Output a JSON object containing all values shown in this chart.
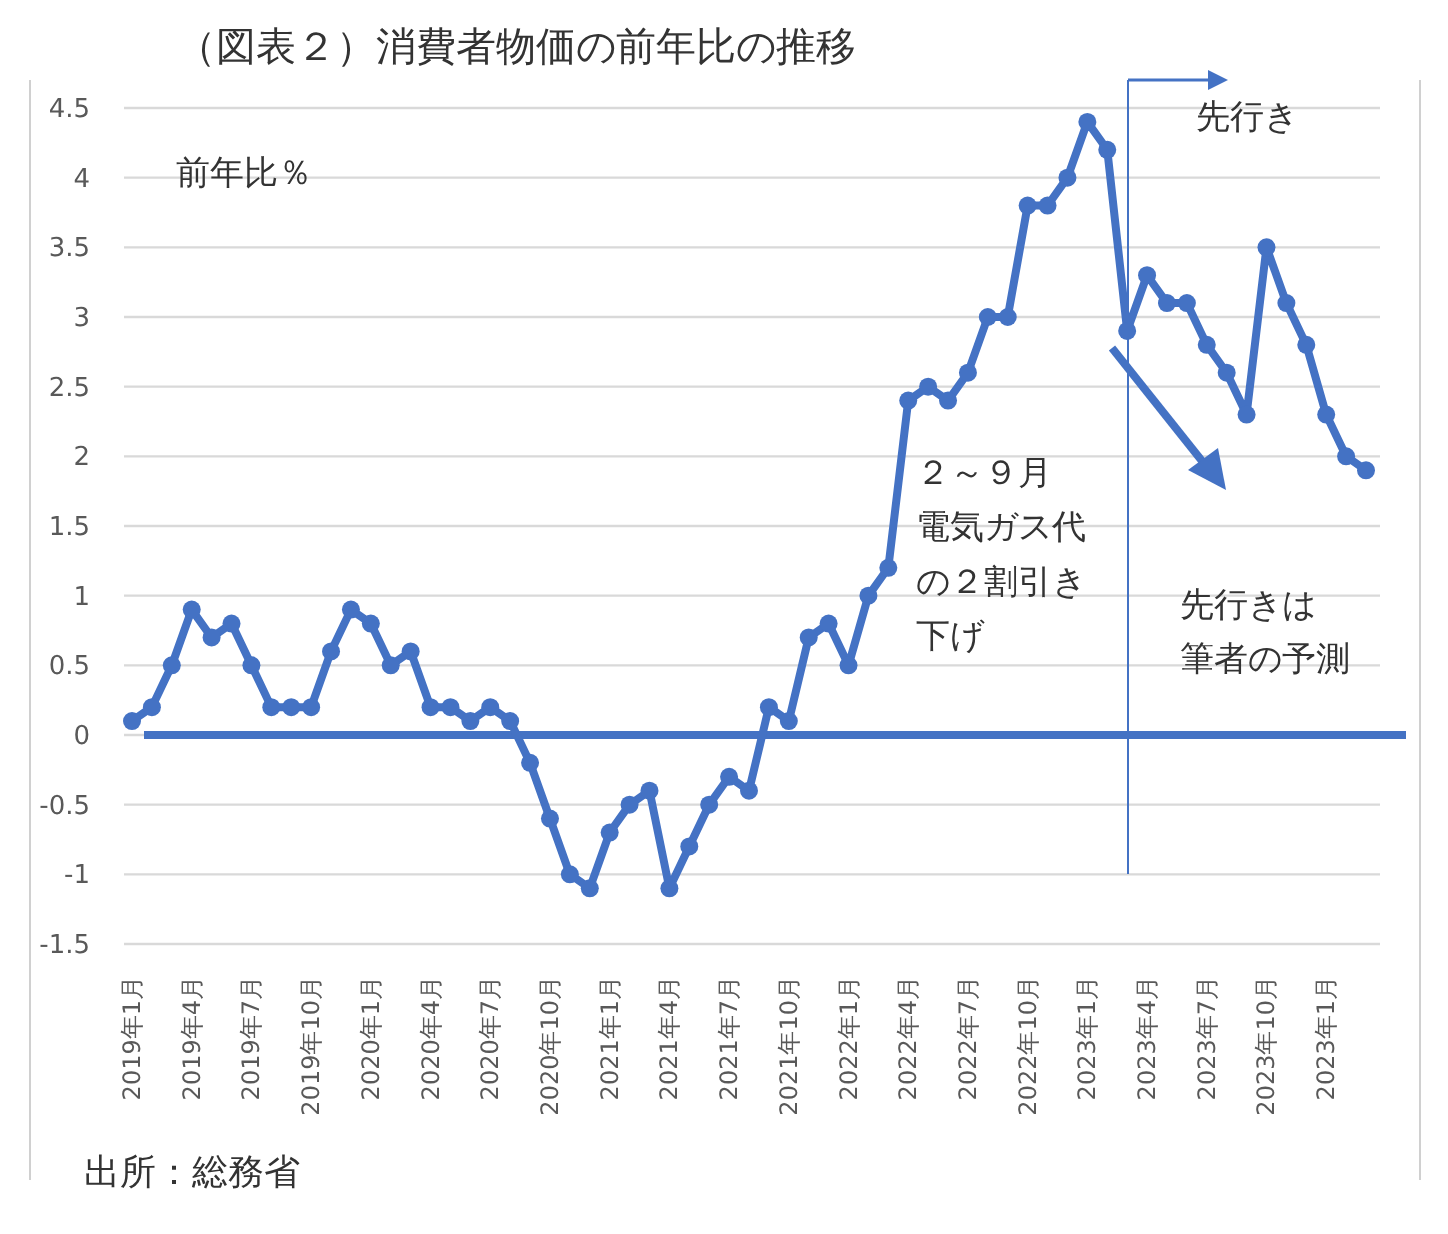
{
  "chart_data": {
    "type": "line",
    "title": "（図表２）消費者物価の前年比の推移",
    "categories": [
      "2019年1月",
      null,
      null,
      "2019年4月",
      null,
      null,
      "2019年7月",
      null,
      null,
      "2019年10月",
      null,
      null,
      "2020年1月",
      null,
      null,
      "2020年4月",
      null,
      null,
      "2020年7月",
      null,
      null,
      "2020年10月",
      null,
      null,
      "2021年1月",
      null,
      null,
      "2021年4月",
      null,
      null,
      "2021年7月",
      null,
      null,
      "2021年10月",
      null,
      null,
      "2022年1月",
      null,
      null,
      "2022年4月",
      null,
      null,
      "2022年7月",
      null,
      null,
      "2022年10月",
      null,
      null,
      "2023年1月",
      null,
      null,
      "2023年4月",
      null,
      null,
      "2023年7月",
      null,
      null,
      "2023年10月",
      null,
      null,
      "2023年1月",
      null,
      null
    ],
    "series": [
      {
        "color": "#4472c4",
        "values": [
          0.1,
          0.2,
          0.5,
          0.9,
          0.7,
          0.8,
          0.5,
          0.2,
          0.2,
          0.2,
          0.6,
          0.9,
          0.8,
          0.5,
          0.6,
          0.2,
          0.2,
          0.1,
          0.2,
          0.1,
          -0.2,
          -0.6,
          -1.0,
          -1.1,
          -0.7,
          -0.5,
          -0.4,
          -1.1,
          -0.8,
          -0.5,
          -0.3,
          -0.4,
          0.2,
          0.1,
          0.7,
          0.8,
          0.5,
          1.0,
          1.2,
          2.4,
          2.5,
          2.4,
          2.6,
          3.0,
          3.0,
          3.8,
          3.8,
          4.0,
          4.4,
          4.2,
          2.9,
          3.3,
          3.1,
          3.1,
          2.8,
          2.6,
          2.3,
          3.5,
          3.1,
          2.8,
          2.3,
          2.0,
          1.9
        ]
      }
    ],
    "ylim": [
      -1.5,
      4.5
    ],
    "yticks": [
      -1.5,
      -1,
      -0.5,
      0,
      0.5,
      1,
      1.5,
      2,
      2.5,
      3,
      3.5,
      4,
      4.5
    ],
    "grid": "y",
    "marker": "circle",
    "line_style": "solid",
    "ref_lines": [
      {
        "axis": "y",
        "value": 0,
        "color": "#4472c4"
      }
    ],
    "annotations": [
      "前年比％",
      "先行き",
      "２～９月電気ガス代の２割引き下げ",
      "先行きは筆者の予測",
      "出所：総務省"
    ]
  }
}
